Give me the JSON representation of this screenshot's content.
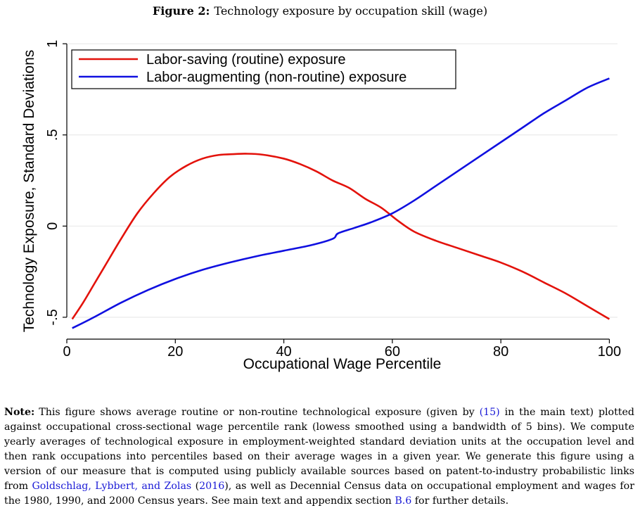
{
  "figure": {
    "label": "Figure 2:",
    "title": "Technology exposure by occupation skill (wage)"
  },
  "chart_data": {
    "type": "line",
    "xlabel": "Occupational Wage Percentile",
    "ylabel": "Technology Exposure, Standard Deviations",
    "xlim": [
      0,
      101.5
    ],
    "ylim": [
      -0.62,
      1.02
    ],
    "xticks": [
      0,
      20,
      40,
      60,
      80,
      100
    ],
    "xtick_labels": [
      "0",
      "20",
      "40",
      "60",
      "80",
      "100"
    ],
    "yticks": [
      -0.5,
      0,
      0.5,
      1
    ],
    "ytick_labels": [
      "-.5",
      "0",
      ".5",
      "1"
    ],
    "grid": true,
    "legend_position": "top-left",
    "series": [
      {
        "name": "Labor-saving (routine) exposure",
        "color": "#e3120b",
        "x": [
          1,
          3,
          5,
          7,
          10,
          13,
          16,
          19,
          22,
          25,
          28,
          31,
          33,
          36,
          40,
          43,
          46,
          49,
          52,
          55,
          58,
          61,
          64,
          68,
          72,
          76,
          80,
          84,
          88,
          92,
          96,
          100
        ],
        "y": [
          -0.51,
          -0.42,
          -0.32,
          -0.22,
          -0.07,
          0.07,
          0.18,
          0.27,
          0.33,
          0.37,
          0.39,
          0.395,
          0.397,
          0.392,
          0.37,
          0.34,
          0.3,
          0.25,
          0.21,
          0.15,
          0.1,
          0.03,
          -0.03,
          -0.08,
          -0.12,
          -0.16,
          -0.2,
          -0.25,
          -0.31,
          -0.37,
          -0.44,
          -0.51
        ]
      },
      {
        "name": "Labor-augmenting (non-routine) exposure",
        "color": "#1010e0",
        "x": [
          1,
          5,
          10,
          15,
          20,
          25,
          30,
          35,
          40,
          45,
          49,
          50,
          53,
          56,
          60,
          64,
          68,
          72,
          76,
          80,
          84,
          88,
          92,
          96,
          100
        ],
        "y": [
          -0.56,
          -0.5,
          -0.42,
          -0.35,
          -0.29,
          -0.24,
          -0.2,
          -0.165,
          -0.135,
          -0.105,
          -0.07,
          -0.04,
          -0.01,
          0.02,
          0.07,
          0.14,
          0.22,
          0.3,
          0.38,
          0.46,
          0.54,
          0.62,
          0.69,
          0.76,
          0.81
        ]
      }
    ]
  },
  "note": {
    "label": "Note:",
    "t1": "This figure shows average routine or non-routine technological exposure (given by ",
    "ref1": "(15)",
    "t2": " in the main text) plotted against occupational cross-sectional wage percentile rank (lowess smoothed using a bandwidth of 5 bins). We compute yearly averages of technological exposure in employment-weighted standard deviation units at the occupation level and then rank occupations into percentiles based on their average wages in a given year. We generate this figure using a version of our measure that is computed using publicly available sources based on patent-to-industry probabilistic links from ",
    "ref2": "Goldschlag, Lybbert, and Zolas",
    "t3": " (",
    "ref3": "2016",
    "t4": "), as well as Decennial Census data on occupational employment and wages for the 1980, 1990, and 2000 Census years. See main text and appendix section ",
    "ref4": "B.6",
    "t5": " for further details."
  }
}
